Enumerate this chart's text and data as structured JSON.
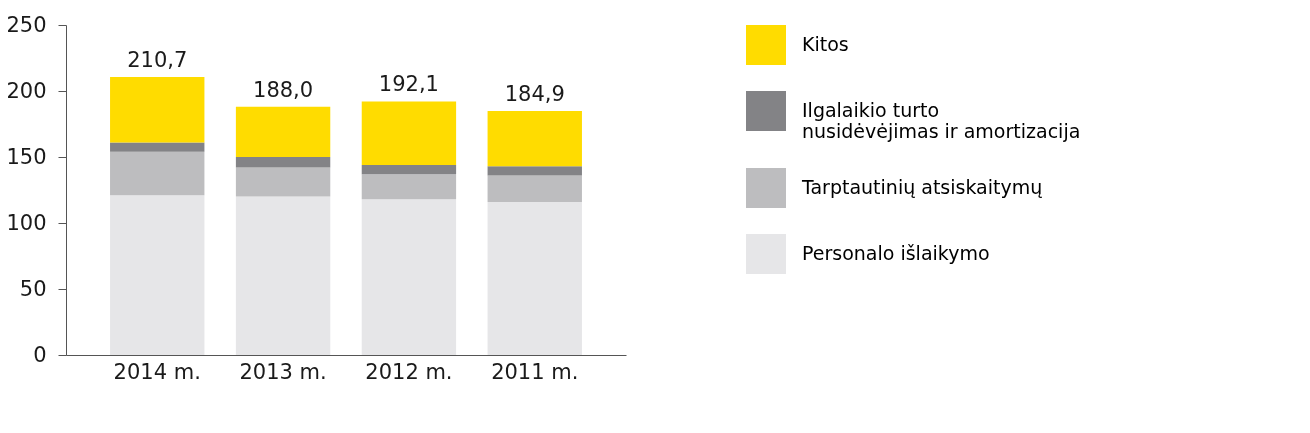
{
  "chart_data": {
    "type": "bar",
    "stacked": true,
    "categories": [
      "2014 m.",
      "2013 m.",
      "2012 m.",
      "2011 m."
    ],
    "series": [
      {
        "name": "Personalo išlaikymo",
        "color": "#e6e6e8",
        "values": [
          121,
          120,
          118,
          116
        ]
      },
      {
        "name": "Tarptautinių atsiskaitymų",
        "color": "#bdbdbf",
        "values": [
          33,
          22,
          19,
          20
        ]
      },
      {
        "name": "Ilgalaikio turto\nnusidėvėjimas ir amortizacija",
        "color": "#838386",
        "values": [
          7,
          8,
          7,
          7
        ]
      },
      {
        "name": "Kitos",
        "color": "#ffdc00",
        "values": [
          49.7,
          38,
          48.1,
          41.9
        ]
      }
    ],
    "totals": [
      "210,7",
      "188,0",
      "192,1",
      "184,9"
    ],
    "ylim": [
      0,
      250
    ],
    "yticks": [
      0,
      50,
      100,
      150,
      200,
      250
    ],
    "grid": false,
    "legend": "right"
  }
}
